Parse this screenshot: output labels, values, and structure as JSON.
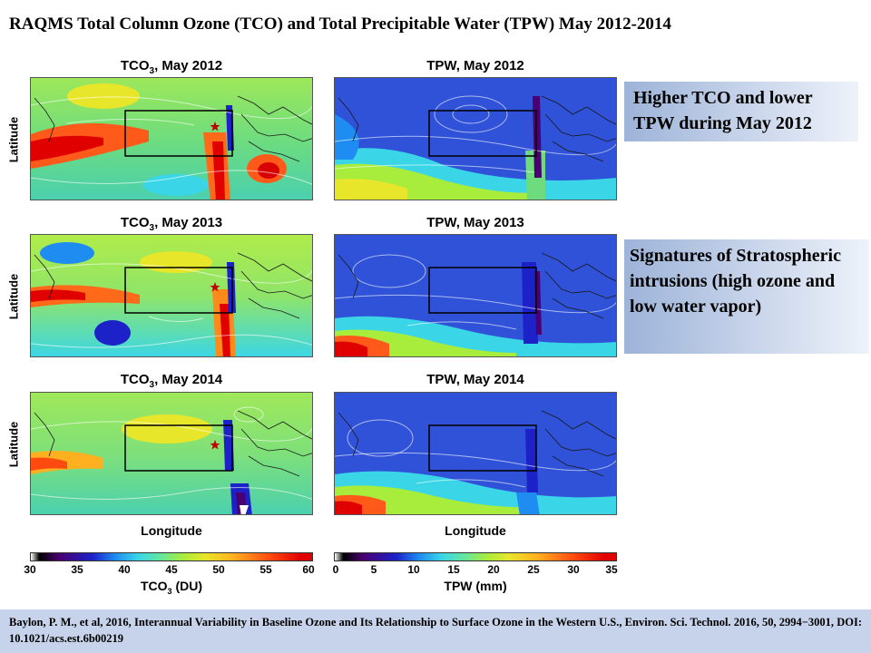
{
  "slide": {
    "title": "RAQMS Total Column Ozone (TCO) and Total Precipitable Water (TPW) May 2012-2014"
  },
  "panels": [
    {
      "prefix": "TCO",
      "sub": "3",
      "suffix": ", May 2012",
      "kind": "ozone"
    },
    {
      "prefix": "TPW, May 2012",
      "sub": "",
      "suffix": "",
      "kind": "tpw"
    },
    {
      "prefix": "TCO",
      "sub": "3",
      "suffix": ", May 2013",
      "kind": "ozone"
    },
    {
      "prefix": "TPW, May 2013",
      "sub": "",
      "suffix": "",
      "kind": "tpw"
    },
    {
      "prefix": "TCO",
      "sub": "3",
      "suffix": ", May 2014",
      "kind": "ozone"
    },
    {
      "prefix": "TPW, May 2014",
      "sub": "",
      "suffix": "",
      "kind": "tpw"
    }
  ],
  "axes": {
    "y_label": "Latitude",
    "x_label": "Longitude"
  },
  "colorbars": {
    "ozone": {
      "ticks": [
        "30",
        "35",
        "40",
        "45",
        "50",
        "55",
        "60"
      ],
      "label_prefix": "TCO",
      "label_sub": "3",
      "label_suffix": " (DU)"
    },
    "tpw": {
      "ticks": [
        "0",
        "5",
        "10",
        "15",
        "20",
        "25",
        "30",
        "35"
      ],
      "label": "TPW (mm)"
    }
  },
  "notes": {
    "note1": "Higher TCO and lower TPW during May 2012",
    "note2": "Signatures of Stratospheric intrusions (high ozone and low water vapor)"
  },
  "footer": {
    "citation": "Baylon, P. M., et al, 2016, Interannual Variability in Baseline Ozone and Its Relationship to Surface Ozone in the Western U.S., Environ. Sci. Technol. 2016, 50, 2994−3001, DOI: 10.1021/acs.est.6b00219"
  },
  "colors": {
    "note_bg": "#9db3d8",
    "footer_bg": "#c6d3eb",
    "ozone_base": "#7de06a",
    "tpw_base": "#2f52d8"
  }
}
